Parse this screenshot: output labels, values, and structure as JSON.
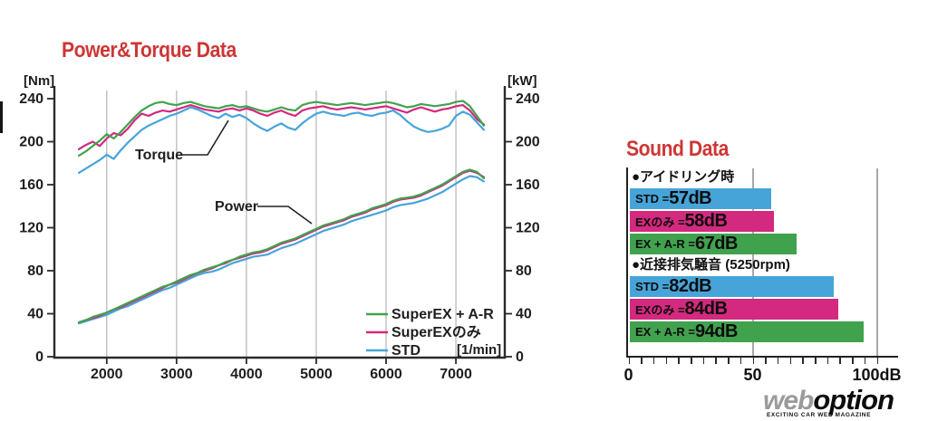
{
  "titles": {
    "power_torque": "Power&Torque Data",
    "sound": "Sound Data"
  },
  "colors": {
    "title_red": "#ce3636",
    "std_blue": "#47A4D9",
    "ex_magenta": "#D3297F",
    "exar_green": "#41A24D",
    "axis": "#2b2b2b",
    "grid": "#b5b5b5"
  },
  "chart_data": [
    {
      "type": "line",
      "title": "Power&Torque Data",
      "x_axis": {
        "unit_label": "[1/min]",
        "ticks": [
          2000,
          3000,
          4000,
          5000,
          6000,
          7000
        ],
        "range": [
          1250,
          7700
        ]
      },
      "y_axis_left": {
        "unit_label": "[Nm]",
        "ticks": [
          0,
          40,
          80,
          120,
          160,
          200,
          240
        ],
        "range": [
          0,
          252
        ]
      },
      "y_axis_right": {
        "unit_label": "[kW]",
        "ticks": [
          0,
          40,
          80,
          120,
          160,
          200,
          240
        ],
        "range": [
          0,
          252
        ]
      },
      "annotations": {
        "torque": "Torque",
        "power": "Power"
      },
      "legend": [
        {
          "label": "SuperEX + A-R",
          "color": "#41A24D"
        },
        {
          "label": "SuperEXのみ",
          "color": "#D3297F"
        },
        {
          "label": "STD",
          "color": "#47A4D9"
        }
      ],
      "rpm": [
        1600,
        1700,
        1800,
        1900,
        2000,
        2100,
        2200,
        2300,
        2400,
        2500,
        2600,
        2700,
        2800,
        2900,
        3000,
        3100,
        3200,
        3300,
        3400,
        3500,
        3600,
        3700,
        3800,
        3900,
        4000,
        4100,
        4200,
        4300,
        4400,
        4500,
        4600,
        4700,
        4800,
        4900,
        5000,
        5100,
        5200,
        5300,
        5400,
        5500,
        5600,
        5700,
        5800,
        5900,
        6000,
        6100,
        6200,
        6300,
        6400,
        6500,
        6600,
        6700,
        6800,
        6900,
        7000,
        7100,
        7200,
        7300,
        7400
      ],
      "torque_series": [
        {
          "name": "STD",
          "color": "#47A4D9",
          "values": [
            171,
            175,
            179,
            183,
            188,
            184,
            192,
            199,
            205,
            211,
            215,
            218,
            221,
            224,
            226,
            229,
            232,
            230,
            227,
            224,
            222,
            226,
            223,
            225,
            222,
            217,
            213,
            210,
            214,
            217,
            213,
            211,
            217,
            222,
            226,
            228,
            226,
            225,
            224,
            226,
            227,
            225,
            224,
            226,
            227,
            229,
            225,
            219,
            214,
            211,
            209,
            210,
            212,
            215,
            224,
            228,
            225,
            218,
            211
          ]
        },
        {
          "name": "SuperEXのみ",
          "color": "#D3297F",
          "values": [
            193,
            197,
            200,
            196,
            203,
            208,
            206,
            212,
            220,
            226,
            224,
            227,
            229,
            228,
            230,
            232,
            234,
            232,
            230,
            229,
            228,
            230,
            231,
            229,
            231,
            229,
            226,
            224,
            227,
            229,
            226,
            224,
            229,
            231,
            232,
            233,
            231,
            230,
            231,
            232,
            231,
            230,
            231,
            232,
            233,
            231,
            229,
            227,
            230,
            232,
            230,
            228,
            230,
            231,
            233,
            234,
            229,
            221,
            216
          ]
        },
        {
          "name": "SuperEX + A-R",
          "color": "#41A24D",
          "values": [
            187,
            191,
            196,
            201,
            207,
            203,
            209,
            216,
            223,
            229,
            233,
            236,
            237,
            235,
            234,
            236,
            237,
            235,
            233,
            232,
            231,
            233,
            234,
            232,
            233,
            231,
            229,
            228,
            230,
            232,
            230,
            229,
            234,
            236,
            237,
            236,
            235,
            234,
            235,
            236,
            235,
            234,
            235,
            236,
            237,
            236,
            234,
            232,
            233,
            235,
            234,
            233,
            234,
            235,
            237,
            238,
            233,
            224,
            215
          ]
        }
      ],
      "power_series": [
        {
          "name": "STD",
          "color": "#47A4D9",
          "values": [
            31,
            33,
            35,
            37,
            39,
            42,
            45,
            47,
            50,
            53,
            56,
            59,
            62,
            64,
            67,
            70,
            73,
            76,
            78,
            79,
            81,
            84,
            87,
            89,
            91,
            93,
            94,
            95,
            98,
            101,
            103,
            105,
            108,
            111,
            114,
            117,
            119,
            121,
            123,
            126,
            128,
            130,
            132,
            134,
            136,
            139,
            141,
            142,
            143,
            145,
            147,
            150,
            153,
            157,
            161,
            165,
            168,
            167,
            163
          ]
        },
        {
          "name": "SuperEXのみ",
          "color": "#D3297F",
          "values": [
            32,
            34,
            36,
            38,
            41,
            44,
            46,
            49,
            52,
            55,
            58,
            61,
            64,
            67,
            69,
            72,
            75,
            78,
            80,
            82,
            85,
            87,
            90,
            92,
            94,
            96,
            97,
            99,
            102,
            105,
            107,
            109,
            112,
            115,
            118,
            121,
            123,
            125,
            127,
            130,
            132,
            134,
            137,
            139,
            141,
            144,
            146,
            147,
            148,
            150,
            153,
            156,
            159,
            163,
            167,
            171,
            173,
            171,
            167
          ]
        },
        {
          "name": "SuperEX + A-R",
          "color": "#41A24D",
          "values": [
            32,
            34,
            37,
            39,
            41,
            44,
            47,
            50,
            53,
            56,
            59,
            62,
            65,
            67,
            70,
            73,
            76,
            78,
            81,
            83,
            85,
            88,
            90,
            93,
            95,
            97,
            98,
            100,
            103,
            106,
            108,
            110,
            113,
            116,
            119,
            122,
            124,
            126,
            128,
            131,
            133,
            135,
            138,
            140,
            142,
            145,
            147,
            148,
            149,
            151,
            154,
            157,
            160,
            164,
            168,
            172,
            174,
            172,
            166
          ]
        }
      ]
    },
    {
      "type": "bar",
      "title": "Sound Data",
      "orientation": "horizontal",
      "unit": "dB",
      "axis": {
        "ticks_major": [
          0,
          50,
          100
        ],
        "tick_labels": [
          "0",
          "50",
          "100dB"
        ],
        "minor_step": 5,
        "range": [
          0,
          105
        ]
      },
      "groups": [
        {
          "header": "●アイドリング時",
          "bars": [
            {
              "label": "STD",
              "value": 57,
              "color": "#47A4D9"
            },
            {
              "label": "EXのみ",
              "value": 58,
              "color": "#D3297F"
            },
            {
              "label": "EX + A-R",
              "value": 67,
              "color": "#41A24D"
            }
          ]
        },
        {
          "header": "●近接排気騒音 (5250rpm)",
          "bars": [
            {
              "label": "STD",
              "value": 82,
              "color": "#47A4D9"
            },
            {
              "label": "EXのみ",
              "value": 84,
              "color": "#D3297F"
            },
            {
              "label": "EX + A-R",
              "value": 94,
              "color": "#41A24D"
            }
          ]
        }
      ]
    }
  ],
  "logo": {
    "part1": "web",
    "part2": "option",
    "tagline": "EXCITING CAR WEB MAGAZINE"
  }
}
